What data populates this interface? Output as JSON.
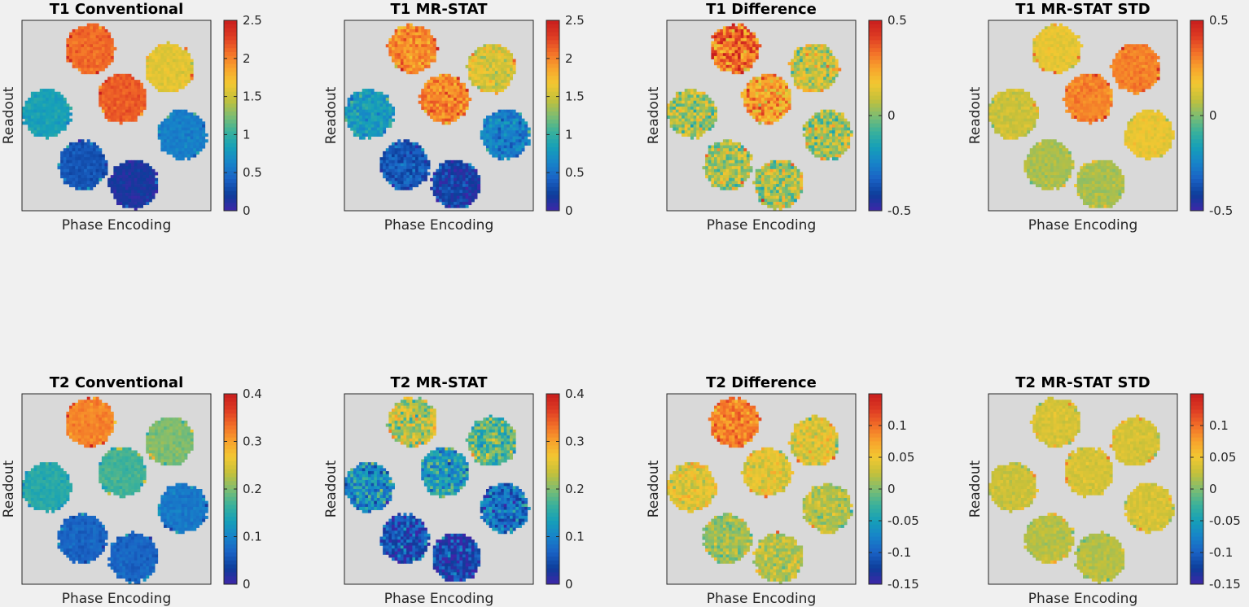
{
  "figure": {
    "xlabel": "Phase Encoding",
    "ylabel": "Readout",
    "colormap": [
      "#3e26a8",
      "#0d3d9a",
      "#1a62c4",
      "#1783c9",
      "#16a0b8",
      "#3bb19a",
      "#80bd70",
      "#c4c03a",
      "#f2c832",
      "#f8a22c",
      "#f26d28",
      "#dd3a23",
      "#c81d1d"
    ],
    "background_gray": "#d9d9d9"
  },
  "chart_data": [
    {
      "type": "heatmap",
      "title": "T1 Conventional",
      "colorbar": {
        "range": [
          0,
          2.5
        ],
        "ticks": [
          0,
          0.5,
          1,
          1.5,
          2,
          2.5
        ],
        "tick_labels": [
          "0",
          "0.5",
          "1",
          "1.5",
          "2",
          "2.5"
        ]
      },
      "phantom_values": [
        2.1,
        1.6,
        0.85,
        2.15,
        0.6,
        0.35,
        0.15
      ],
      "noise": "low"
    },
    {
      "type": "heatmap",
      "title": "T1 MR-STAT",
      "colorbar": {
        "range": [
          0,
          2.5
        ],
        "ticks": [
          0,
          0.5,
          1,
          1.5,
          2,
          2.5
        ],
        "tick_labels": [
          "0",
          "0.5",
          "1",
          "1.5",
          "2",
          "2.5"
        ]
      },
      "phantom_values": [
        1.95,
        1.55,
        0.8,
        2.0,
        0.6,
        0.35,
        0.2
      ],
      "noise": "medium"
    },
    {
      "type": "heatmap",
      "title": "T1 Difference",
      "colorbar": {
        "range": [
          -0.5,
          0.5
        ],
        "ticks": [
          -0.5,
          0,
          0.5
        ],
        "tick_labels": [
          "-0.5",
          "0",
          "0.5"
        ]
      },
      "phantom_values": [
        0.35,
        0.1,
        0.05,
        0.25,
        0.05,
        0.05,
        0.05
      ],
      "noise": "high"
    },
    {
      "type": "heatmap",
      "title": "T1 MR-STAT STD",
      "colorbar": {
        "range": [
          -0.5,
          0.5
        ],
        "ticks": [
          -0.5,
          0,
          0.5
        ],
        "tick_labels": [
          "-0.5",
          "0",
          "0.5"
        ]
      },
      "phantom_values": [
        0.15,
        0.3,
        0.1,
        0.3,
        0.15,
        0.05,
        0.05
      ],
      "noise": "low"
    },
    {
      "type": "heatmap",
      "title": "T2 Conventional",
      "colorbar": {
        "range": [
          0,
          0.4
        ],
        "ticks": [
          0,
          0.1,
          0.2,
          0.3,
          0.4
        ],
        "tick_labels": [
          "0",
          "0.1",
          "0.2",
          "0.3",
          "0.4"
        ]
      },
      "phantom_values": [
        0.32,
        0.2,
        0.15,
        0.17,
        0.09,
        0.07,
        0.07
      ],
      "noise": "low"
    },
    {
      "type": "heatmap",
      "title": "T2 MR-STAT",
      "colorbar": {
        "range": [
          0,
          0.4
        ],
        "ticks": [
          0,
          0.1,
          0.2,
          0.3,
          0.4
        ],
        "tick_labels": [
          "0",
          "0.1",
          "0.2",
          "0.3",
          "0.4"
        ]
      },
      "phantom_values": [
        0.23,
        0.18,
        0.11,
        0.13,
        0.08,
        0.05,
        0.04
      ],
      "noise": "high"
    },
    {
      "type": "heatmap",
      "title": "T2 Difference",
      "colorbar": {
        "range": [
          -0.15,
          0.15
        ],
        "ticks": [
          -0.15,
          -0.1,
          -0.05,
          0,
          0.05,
          0.1
        ],
        "tick_labels": [
          "-0.15",
          "-0.1",
          "-0.05",
          "0",
          "0.05",
          "0.1"
        ]
      },
      "phantom_values": [
        0.09,
        0.04,
        0.04,
        0.04,
        0.02,
        0.01,
        0.02
      ],
      "noise": "medium"
    },
    {
      "type": "heatmap",
      "title": "T2 MR-STAT STD",
      "colorbar": {
        "range": [
          -0.15,
          0.15
        ],
        "ticks": [
          -0.15,
          -0.1,
          -0.05,
          0,
          0.05,
          0.1
        ],
        "tick_labels": [
          "-0.15",
          "-0.1",
          "-0.05",
          "0",
          "0.05",
          "0.1"
        ]
      },
      "phantom_values": [
        0.035,
        0.035,
        0.03,
        0.035,
        0.035,
        0.02,
        0.02
      ],
      "noise": "low"
    }
  ]
}
